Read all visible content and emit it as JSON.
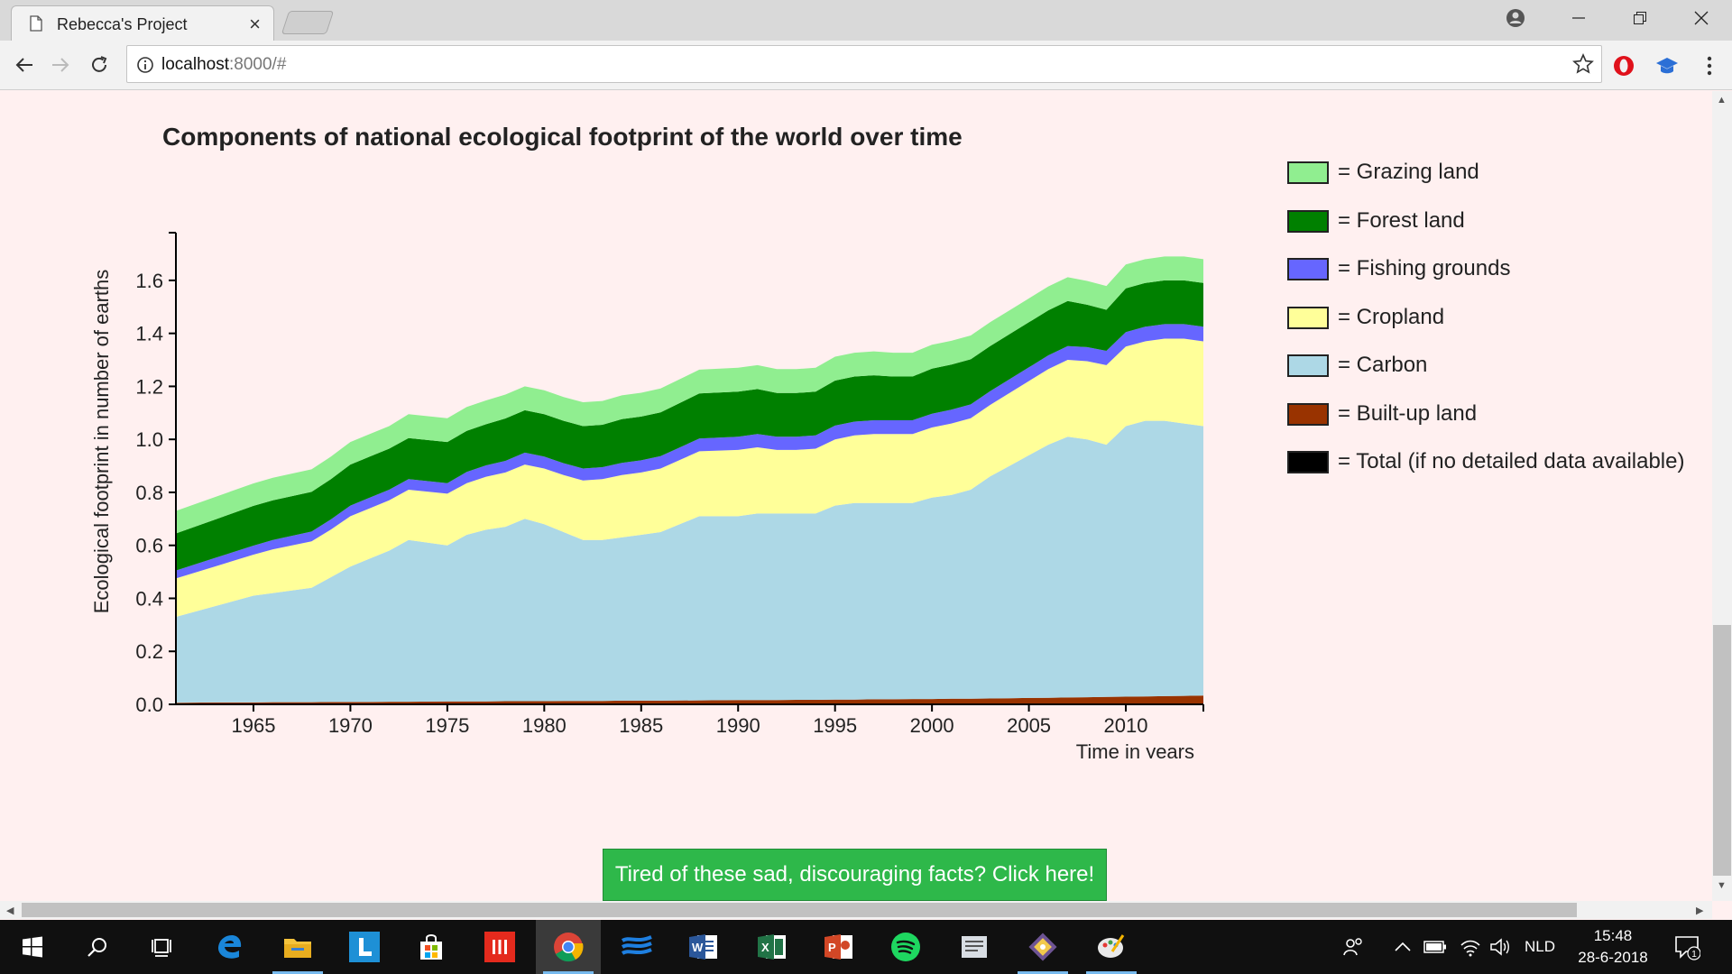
{
  "browser": {
    "tab_title": "Rebecca's Project",
    "url_host": "localhost",
    "url_path": ":8000/#"
  },
  "page": {
    "button_label": "Tired of these sad, discouraging facts? Click here!"
  },
  "chart_data": {
    "type": "area",
    "stacked": true,
    "title": "Components of national ecological footprint of the world over time",
    "xlabel": "Time in years",
    "ylabel": "Ecological footprint in number of earths",
    "xlim": [
      1961,
      2014
    ],
    "ylim": [
      0,
      1.78
    ],
    "x_ticks": [
      "1965",
      "1970",
      "1975",
      "1980",
      "1985",
      "1990",
      "1995",
      "2000",
      "2005",
      "2010"
    ],
    "y_ticks": [
      "0.0",
      "0.2",
      "0.4",
      "0.6",
      "0.8",
      "1.0",
      "1.2",
      "1.4",
      "1.6"
    ],
    "legend_position": "right",
    "x": [
      1961,
      1963,
      1965,
      1966,
      1968,
      1969,
      1970,
      1971,
      1972,
      1973,
      1975,
      1976,
      1977,
      1978,
      1979,
      1980,
      1981,
      1982,
      1983,
      1984,
      1985,
      1986,
      1988,
      1990,
      1991,
      1992,
      1993,
      1994,
      1995,
      1996,
      1997,
      1998,
      1999,
      2000,
      2001,
      2002,
      2003,
      2004,
      2005,
      2006,
      2007,
      2008,
      2009,
      2010,
      2011,
      2012,
      2013,
      2014
    ],
    "series": [
      {
        "name": "Built-up land",
        "color": "#993300",
        "values": [
          0.006,
          0.007,
          0.007,
          0.008,
          0.008,
          0.009,
          0.009,
          0.009,
          0.01,
          0.01,
          0.011,
          0.011,
          0.011,
          0.012,
          0.012,
          0.012,
          0.013,
          0.013,
          0.013,
          0.014,
          0.014,
          0.014,
          0.015,
          0.016,
          0.016,
          0.016,
          0.017,
          0.017,
          0.018,
          0.018,
          0.019,
          0.019,
          0.02,
          0.02,
          0.021,
          0.021,
          0.022,
          0.023,
          0.024,
          0.025,
          0.026,
          0.027,
          0.028,
          0.029,
          0.03,
          0.031,
          0.032,
          0.033
        ]
      },
      {
        "name": "Carbon",
        "color": "#add8e6",
        "values": [
          0.324,
          0.363,
          0.403,
          0.412,
          0.432,
          0.471,
          0.511,
          0.541,
          0.57,
          0.61,
          0.589,
          0.629,
          0.648,
          0.658,
          0.688,
          0.668,
          0.637,
          0.607,
          0.607,
          0.616,
          0.626,
          0.636,
          0.695,
          0.694,
          0.704,
          0.704,
          0.703,
          0.703,
          0.732,
          0.742,
          0.741,
          0.741,
          0.74,
          0.76,
          0.769,
          0.789,
          0.838,
          0.877,
          0.916,
          0.955,
          0.984,
          0.973,
          0.952,
          1.021,
          1.04,
          1.039,
          1.028,
          1.017
        ]
      },
      {
        "name": "Cropland",
        "color": "#ffff99",
        "values": [
          0.145,
          0.15,
          0.155,
          0.165,
          0.175,
          0.18,
          0.19,
          0.19,
          0.19,
          0.19,
          0.195,
          0.195,
          0.2,
          0.205,
          0.205,
          0.21,
          0.215,
          0.225,
          0.23,
          0.235,
          0.235,
          0.24,
          0.245,
          0.25,
          0.25,
          0.24,
          0.24,
          0.245,
          0.25,
          0.255,
          0.26,
          0.26,
          0.26,
          0.265,
          0.27,
          0.27,
          0.27,
          0.275,
          0.28,
          0.285,
          0.29,
          0.295,
          0.3,
          0.3,
          0.3,
          0.31,
          0.32,
          0.32
        ]
      },
      {
        "name": "Fishing grounds",
        "color": "#6666ff",
        "values": [
          0.03,
          0.032,
          0.034,
          0.035,
          0.037,
          0.038,
          0.04,
          0.04,
          0.04,
          0.04,
          0.04,
          0.042,
          0.043,
          0.044,
          0.045,
          0.045,
          0.045,
          0.045,
          0.045,
          0.046,
          0.046,
          0.047,
          0.048,
          0.05,
          0.05,
          0.05,
          0.05,
          0.05,
          0.052,
          0.052,
          0.052,
          0.052,
          0.052,
          0.052,
          0.052,
          0.052,
          0.052,
          0.052,
          0.052,
          0.052,
          0.052,
          0.053,
          0.054,
          0.055,
          0.055,
          0.055,
          0.055,
          0.055
        ]
      },
      {
        "name": "Forest land",
        "color": "#008000",
        "values": [
          0.14,
          0.145,
          0.15,
          0.15,
          0.15,
          0.152,
          0.155,
          0.155,
          0.155,
          0.155,
          0.155,
          0.155,
          0.155,
          0.16,
          0.16,
          0.16,
          0.16,
          0.16,
          0.16,
          0.165,
          0.165,
          0.165,
          0.17,
          0.17,
          0.17,
          0.165,
          0.165,
          0.165,
          0.17,
          0.17,
          0.17,
          0.165,
          0.165,
          0.17,
          0.17,
          0.17,
          0.17,
          0.17,
          0.17,
          0.17,
          0.17,
          0.16,
          0.155,
          0.165,
          0.165,
          0.165,
          0.165,
          0.165
        ]
      },
      {
        "name": "Grazing land",
        "color": "#90ee90",
        "values": [
          0.085,
          0.085,
          0.085,
          0.085,
          0.085,
          0.085,
          0.085,
          0.085,
          0.085,
          0.09,
          0.09,
          0.09,
          0.09,
          0.09,
          0.09,
          0.09,
          0.09,
          0.09,
          0.09,
          0.09,
          0.09,
          0.09,
          0.09,
          0.09,
          0.09,
          0.09,
          0.09,
          0.09,
          0.09,
          0.09,
          0.09,
          0.09,
          0.09,
          0.09,
          0.09,
          0.09,
          0.09,
          0.09,
          0.09,
          0.09,
          0.09,
          0.09,
          0.09,
          0.09,
          0.09,
          0.09,
          0.09,
          0.09
        ]
      }
    ],
    "legend": [
      {
        "label": "= Grazing land",
        "color": "#90ee90"
      },
      {
        "label": "= Forest land",
        "color": "#008000"
      },
      {
        "label": "= Fishing grounds",
        "color": "#6666ff"
      },
      {
        "label": "= Cropland",
        "color": "#ffff99"
      },
      {
        "label": "= Carbon",
        "color": "#add8e6"
      },
      {
        "label": "= Built-up land",
        "color": "#993300"
      },
      {
        "label": "= Total (if no detailed data available)",
        "color": "#000000"
      }
    ]
  },
  "taskbar": {
    "language": "NLD",
    "time": "15:48",
    "date": "28-6-2018",
    "notification_count": "1",
    "apps": [
      "windows-start-icon",
      "search-icon",
      "task-view-icon",
      "edge-icon",
      "file-explorer-icon",
      "l-app-icon",
      "store-icon",
      "red-app-icon",
      "chrome-icon",
      "waves-app-icon",
      "word-icon",
      "excel-icon",
      "powerpoint-icon",
      "spotify-icon",
      "notes-app-icon",
      "git-app-icon",
      "paint-app-icon"
    ]
  }
}
